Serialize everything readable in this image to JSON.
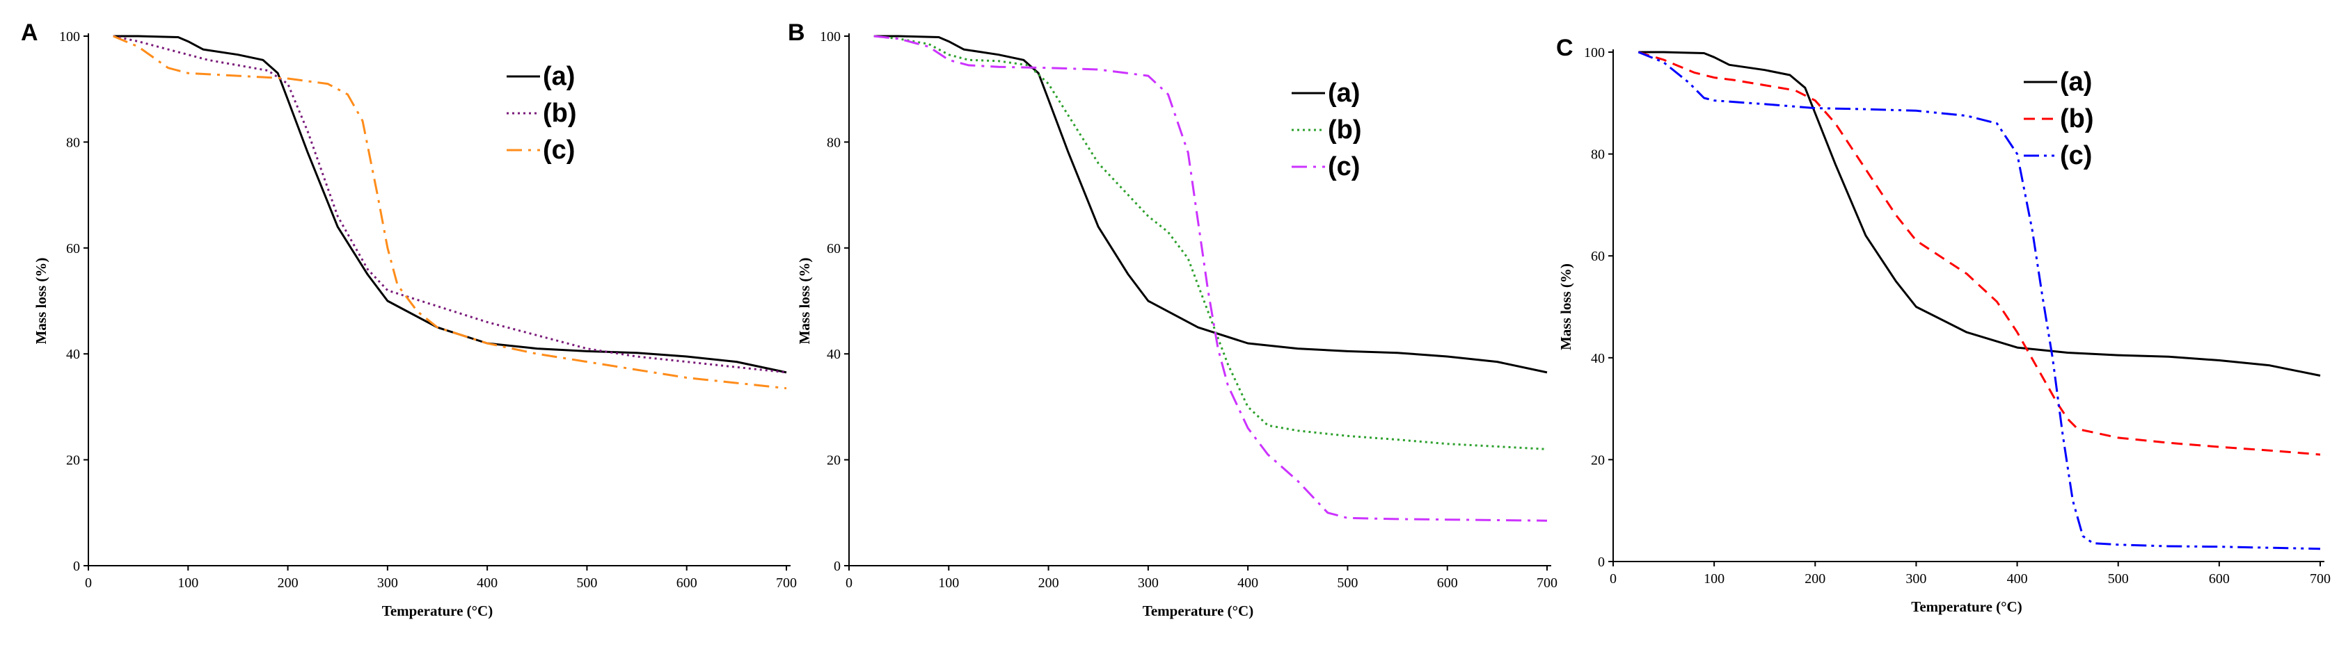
{
  "chart_data": [
    {
      "type": "line",
      "panel": "A",
      "xlabel": "Temperature (°C)",
      "ylabel": "Mass loss (%)",
      "xlim": [
        0,
        700
      ],
      "ylim": [
        0,
        100
      ],
      "xticks": [
        0,
        100,
        200,
        300,
        400,
        500,
        600,
        700
      ],
      "yticks": [
        0,
        20,
        40,
        60,
        80,
        100
      ],
      "legend_position": "top-right",
      "series": [
        {
          "name": "(a)",
          "color": "#000000",
          "dash": "solid",
          "x": [
            25,
            50,
            90,
            100,
            115,
            150,
            175,
            190,
            200,
            220,
            250,
            280,
            300,
            350,
            400,
            450,
            500,
            550,
            600,
            650,
            700
          ],
          "y": [
            100,
            100,
            99.8,
            99,
            97.5,
            96.5,
            95.5,
            93,
            88,
            78,
            64,
            55,
            50,
            45,
            42,
            41,
            40.5,
            40.2,
            39.5,
            38.5,
            36.5
          ]
        },
        {
          "name": "(b)",
          "color": "#7a1b7a",
          "dash": "dotted",
          "x": [
            25,
            50,
            80,
            100,
            120,
            150,
            180,
            200,
            220,
            250,
            280,
            300,
            350,
            400,
            450,
            500,
            550,
            600,
            650,
            700
          ],
          "y": [
            100,
            99,
            97.5,
            96.5,
            95.5,
            94.5,
            93.5,
            91,
            82,
            66,
            56,
            52,
            49,
            46,
            43.5,
            41,
            39.5,
            38.5,
            37.5,
            36.5
          ]
        },
        {
          "name": "(c)",
          "color": "#ff8c1a",
          "dash": "dashdot",
          "x": [
            25,
            50,
            80,
            100,
            150,
            200,
            240,
            260,
            275,
            290,
            300,
            310,
            330,
            350,
            400,
            450,
            500,
            550,
            600,
            650,
            700
          ],
          "y": [
            100,
            98,
            94,
            93,
            92.5,
            92,
            91,
            89,
            84,
            70,
            60,
            53,
            48,
            45,
            42,
            40,
            38.5,
            37,
            35.5,
            34.5,
            33.5
          ]
        }
      ]
    },
    {
      "type": "line",
      "panel": "B",
      "xlabel": "Temperature (°C)",
      "ylabel": "Mass loss (%)",
      "xlim": [
        0,
        700
      ],
      "ylim": [
        0,
        100
      ],
      "xticks": [
        0,
        100,
        200,
        300,
        400,
        500,
        600,
        700
      ],
      "yticks": [
        0,
        20,
        40,
        60,
        80,
        100
      ],
      "legend_position": "top-right",
      "series": [
        {
          "name": "(a)",
          "color": "#000000",
          "dash": "solid",
          "x": [
            25,
            50,
            90,
            100,
            115,
            150,
            175,
            190,
            200,
            220,
            250,
            280,
            300,
            350,
            400,
            450,
            500,
            550,
            600,
            650,
            700
          ],
          "y": [
            100,
            100,
            99.8,
            99,
            97.5,
            96.5,
            95.5,
            93,
            88,
            78,
            64,
            55,
            50,
            45,
            42,
            41,
            40.5,
            40.2,
            39.5,
            38.5,
            36.5
          ]
        },
        {
          "name": "(b)",
          "color": "#2ca02c",
          "dash": "dotted",
          "x": [
            25,
            50,
            80,
            100,
            120,
            150,
            180,
            200,
            220,
            250,
            280,
            300,
            320,
            340,
            360,
            380,
            400,
            420,
            450,
            500,
            550,
            600,
            650,
            700
          ],
          "y": [
            100,
            99.5,
            98.5,
            96.5,
            95.5,
            95.3,
            94.5,
            91,
            85,
            76,
            70,
            66,
            63,
            58,
            48,
            38,
            30,
            26.5,
            25.5,
            24.5,
            23.8,
            23,
            22.5,
            22
          ]
        },
        {
          "name": "(c)",
          "color": "#cc33ff",
          "dash": "dashdot",
          "x": [
            25,
            50,
            80,
            100,
            120,
            150,
            200,
            250,
            300,
            320,
            340,
            350,
            360,
            370,
            380,
            400,
            420,
            450,
            480,
            500,
            550,
            600,
            650,
            700
          ],
          "y": [
            100,
            99.5,
            98,
            95.5,
            94.5,
            94.2,
            94,
            93.7,
            92.5,
            89,
            78,
            65,
            52,
            41,
            34,
            26,
            21,
            16,
            10,
            9,
            8.8,
            8.7,
            8.6,
            8.5
          ]
        }
      ]
    },
    {
      "type": "line",
      "panel": "C",
      "xlabel": "Temperature (°C)",
      "ylabel": "Mass loss (%)",
      "xlim": [
        0,
        700
      ],
      "ylim": [
        0,
        100
      ],
      "xticks": [
        0,
        100,
        200,
        300,
        400,
        500,
        600,
        700
      ],
      "yticks": [
        0,
        20,
        40,
        60,
        80,
        100
      ],
      "legend_position": "top-right",
      "series": [
        {
          "name": "(a)",
          "color": "#000000",
          "dash": "solid",
          "x": [
            25,
            50,
            90,
            100,
            115,
            150,
            175,
            190,
            200,
            220,
            250,
            280,
            300,
            350,
            400,
            450,
            500,
            550,
            600,
            650,
            700
          ],
          "y": [
            100,
            100,
            99.8,
            99,
            97.5,
            96.5,
            95.5,
            93,
            88,
            78,
            64,
            55,
            50,
            45,
            42,
            41,
            40.5,
            40.2,
            39.5,
            38.5,
            36.5
          ]
        },
        {
          "name": "(b)",
          "color": "#ff0000",
          "dash": "dashed",
          "x": [
            25,
            50,
            80,
            100,
            120,
            150,
            180,
            200,
            220,
            250,
            280,
            300,
            350,
            380,
            400,
            420,
            440,
            450,
            460,
            500,
            550,
            600,
            650,
            700
          ],
          "y": [
            100,
            98.5,
            96,
            95,
            94.5,
            93.5,
            92.5,
            90.5,
            86,
            77,
            68,
            63,
            56.5,
            51,
            45,
            38,
            31,
            28,
            26,
            24.3,
            23.3,
            22.5,
            21.8,
            21
          ]
        },
        {
          "name": "(c)",
          "color": "#0000ff",
          "dash": "dashdotdot",
          "x": [
            25,
            50,
            75,
            90,
            100,
            150,
            200,
            250,
            300,
            350,
            380,
            400,
            415,
            425,
            435,
            445,
            455,
            465,
            475,
            500,
            550,
            600,
            650,
            700
          ],
          "y": [
            100,
            98,
            94,
            91,
            90.5,
            89.8,
            89,
            88.8,
            88.5,
            87.5,
            86,
            80,
            65,
            52,
            40,
            25,
            12,
            5,
            3.6,
            3.3,
            3,
            2.9,
            2.7,
            2.5
          ]
        }
      ]
    }
  ]
}
